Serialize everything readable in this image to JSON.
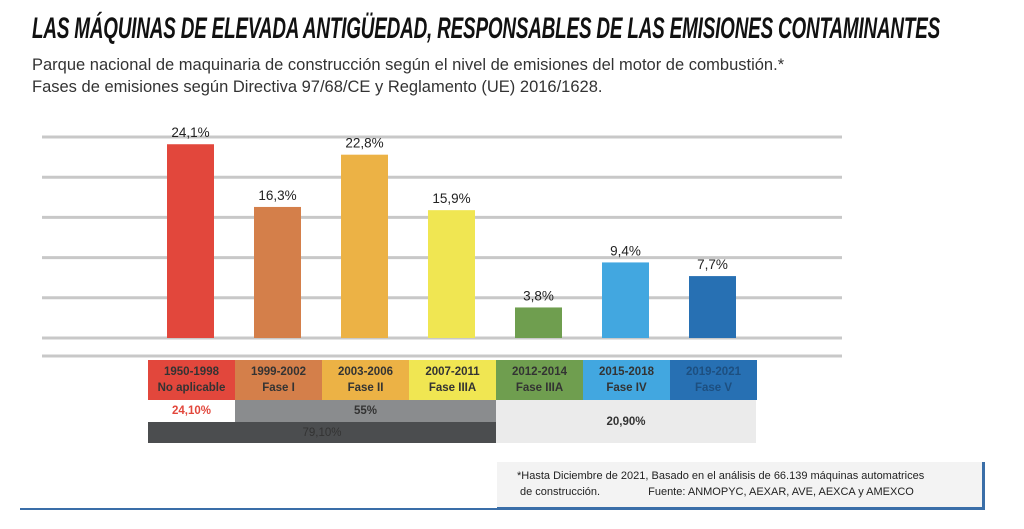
{
  "title": "LAS MÁQUINAS DE ELEVADA ANTIGÜEDAD, RESPONSABLES DE LAS EMISIONES CONTAMINANTES",
  "subtitle_lines": [
    "Parque nacional de maquinaria de construcción según el nivel de emisiones del motor de combustión.*",
    "Fases de emisiones según Directiva 97/68/CE y Reglamento (UE) 2016/1628."
  ],
  "chart_data": {
    "type": "bar",
    "categories": [
      "1950-1998 No aplicable",
      "1999-2002 Fase I",
      "2003-2006 Fase II",
      "2007-2011 Fase IIIA",
      "2012-2014 Fase IIIA",
      "2015-2018 Fase IV",
      "2019-2021 Fase V"
    ],
    "values": [
      24.1,
      16.3,
      22.8,
      15.9,
      3.8,
      9.4,
      7.7
    ],
    "data_labels": [
      "24,1%",
      "16,3%",
      "22,8%",
      "15,9%",
      "3,8%",
      "9,4%",
      "7,7%"
    ],
    "colors": [
      "#e2473c",
      "#d47f4a",
      "#ecb245",
      "#f0e652",
      "#6f9e4f",
      "#42a7e0",
      "#2770b3"
    ],
    "ylim": [
      0,
      25
    ],
    "grid_step": 5,
    "grid": true,
    "ylabel": "",
    "xlabel": ""
  },
  "phases": [
    {
      "years": "1950-1998",
      "fase": "No aplicable",
      "text_color": "#333333"
    },
    {
      "years": "1999-2002",
      "fase": "Fase I",
      "text_color": "#333333"
    },
    {
      "years": "2003-2006",
      "fase": "Fase II",
      "text_color": "#333333"
    },
    {
      "years": "2007-2011",
      "fase": "Fase IIIA",
      "text_color": "#333333"
    },
    {
      "years": "2012-2014",
      "fase": "Fase IIIA",
      "text_color": "#333333"
    },
    {
      "years": "2015-2018",
      "fase": "Fase IV",
      "text_color": "#333333"
    },
    {
      "years": "2019-2021",
      "fase": "Fase V",
      "text_color": "#1d4f80"
    }
  ],
  "totals": {
    "no_aplicable": "24,10%",
    "fases_1_3": "55%",
    "antiguas": "79,10%",
    "recientes": "20,90%"
  },
  "note": {
    "line1": "*Hasta Diciembre de 2021, Basado en el análisis de 66.139 máquinas automatrices",
    "line2a": "de construcción.",
    "line2b": "Fuente: ANMOPYC, AEXAR, AVE, AEXCA y AMEXCO"
  }
}
